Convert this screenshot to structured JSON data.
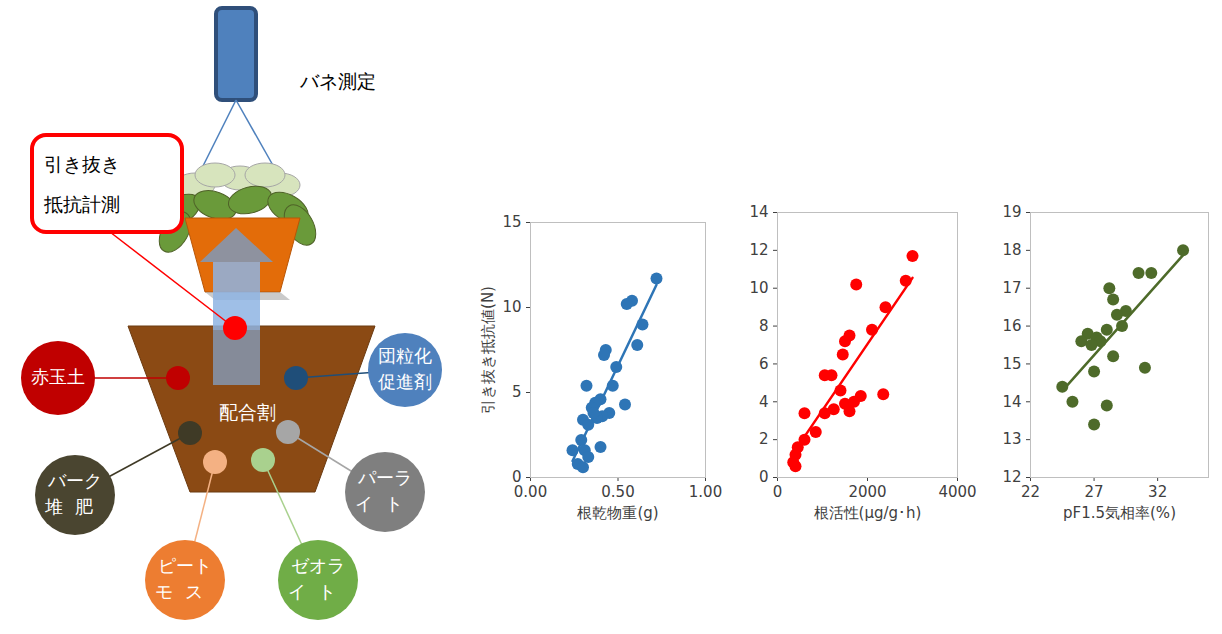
{
  "diagram": {
    "gauge": "バネ測定",
    "measure": "引き抜き抵抗計測",
    "pot": "配合割",
    "materials": [
      "赤玉土",
      "団粒化促進剤",
      "バーク堆肥",
      "パーライト",
      "ピートモス",
      "ゼオライト"
    ]
  },
  "chart_data": [
    {
      "type": "scatter",
      "x_label": "根乾物重(g)",
      "y_label": "引き抜き抵抗値(N)",
      "x": [
        0.72,
        0.58,
        0.55,
        0.64,
        0.61,
        0.43,
        0.42,
        0.49,
        0.47,
        0.32,
        0.4,
        0.37,
        0.35,
        0.54,
        0.45,
        0.41,
        0.38,
        0.3,
        0.33,
        0.29,
        0.4,
        0.31,
        0.24,
        0.27,
        0.3,
        0.33,
        0.36
      ],
      "values": [
        11.7,
        10.4,
        10.2,
        9.0,
        7.8,
        7.5,
        7.2,
        6.5,
        5.4,
        5.4,
        4.6,
        4.4,
        4.1,
        4.3,
        3.8,
        3.6,
        3.5,
        3.4,
        3.1,
        2.2,
        1.8,
        1.6,
        1.6,
        0.8,
        0.6,
        1.2,
        3.8
      ],
      "color": "#2e75b6",
      "marker": "circle",
      "line_style": "solid",
      "xlim": [
        0,
        1
      ],
      "xticks": [
        {
          "value": 0,
          "label": "0.00"
        },
        {
          "value": 0.5,
          "label": "0.50"
        },
        {
          "value": 1,
          "label": "1.00"
        }
      ],
      "ylim": [
        0,
        15
      ],
      "yticks": [
        0,
        5,
        10,
        15
      ]
    },
    {
      "type": "scatter",
      "x_label": "根活性(μg/g･h)",
      "x": [
        3000,
        2850,
        1750,
        2400,
        2100,
        1600,
        1500,
        1450,
        1200,
        1050,
        1400,
        1850,
        2350,
        1250,
        1600,
        1050,
        600,
        850,
        600,
        450,
        400,
        350,
        400,
        1700,
        1500
      ],
      "values": [
        11.7,
        10.4,
        10.2,
        9.0,
        7.8,
        7.5,
        7.2,
        6.5,
        5.4,
        5.4,
        4.6,
        4.3,
        4.4,
        3.6,
        3.5,
        3.4,
        3.4,
        2.4,
        2.0,
        1.6,
        1.2,
        0.8,
        0.6,
        4.0,
        3.9
      ],
      "color": "#ff0000",
      "marker": "circle",
      "line_style": "solid",
      "xlim": [
        0,
        4000
      ],
      "xticks": [
        0,
        2000,
        4000
      ],
      "ylim": [
        0,
        14
      ],
      "yticks": [
        0,
        2,
        4,
        6,
        8,
        10,
        12,
        14
      ]
    },
    {
      "type": "scatter",
      "x_label": "pF1.5気相率(%)",
      "x": [
        34.0,
        30.5,
        31.5,
        28.2,
        28.5,
        29.5,
        28.8,
        29.2,
        26.5,
        27.2,
        28.0,
        27.5,
        26.0,
        26.8,
        28.5,
        31.0,
        27.0,
        24.5,
        25.3,
        28.0,
        27.0
      ],
      "values": [
        18.0,
        17.4,
        17.4,
        17.0,
        16.7,
        16.4,
        16.3,
        16.0,
        15.8,
        15.7,
        15.9,
        15.6,
        15.6,
        15.5,
        15.2,
        14.9,
        14.8,
        14.4,
        14.0,
        13.9,
        13.4
      ],
      "color": "#4e6b2a",
      "marker": "circle",
      "line_style": "solid",
      "xlim": [
        22,
        36
      ],
      "xticks": [
        22,
        27,
        32
      ],
      "ylim": [
        12,
        19
      ],
      "yticks": [
        12,
        13,
        14,
        15,
        16,
        17,
        18,
        19
      ]
    }
  ]
}
